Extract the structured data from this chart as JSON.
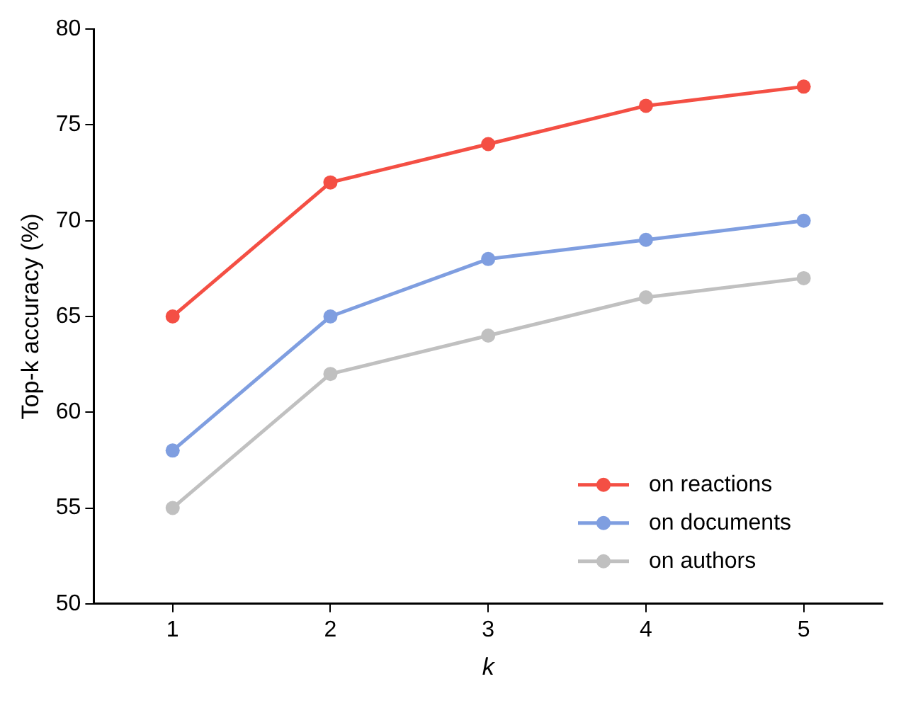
{
  "chart_data": {
    "type": "line",
    "xlabel": "k",
    "ylabel": "Top-k accuracy (%)",
    "x": [
      1,
      2,
      3,
      4,
      5
    ],
    "series": [
      {
        "name": "on reactions",
        "color": "#f44f44",
        "values": [
          65,
          72,
          74,
          76,
          77
        ]
      },
      {
        "name": "on documents",
        "color": "#7f9ee0",
        "values": [
          58,
          65,
          68,
          69,
          70
        ]
      },
      {
        "name": "on authors",
        "color": "#c0c0c0",
        "values": [
          55,
          62,
          64,
          66,
          67
        ]
      }
    ],
    "xlim": [
      0.5,
      5.5
    ],
    "xticks": [
      1,
      2,
      3,
      4,
      5
    ],
    "ylim": [
      50,
      80
    ],
    "yticks": [
      50,
      55,
      60,
      65,
      70,
      75,
      80
    ],
    "grid": false,
    "legend": "bottom right",
    "marker": "circle",
    "line_style": "solid"
  }
}
